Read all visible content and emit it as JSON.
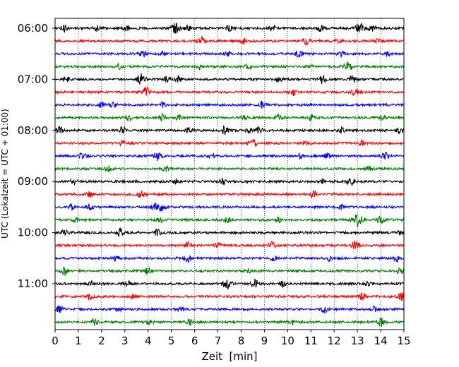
{
  "chart_data": {
    "type": "line",
    "title": "",
    "xlabel": "Zeit  [min]",
    "ylabel": "UTC (Lokalzeit = UTC + 01:00)",
    "xlim": [
      0,
      15
    ],
    "x_ticks": [
      0,
      1,
      2,
      3,
      4,
      5,
      6,
      7,
      8,
      9,
      10,
      11,
      12,
      13,
      14,
      15
    ],
    "x_tick_labels": [
      "0",
      "1",
      "2",
      "3",
      "4",
      "5",
      "6",
      "7",
      "8",
      "9",
      "10",
      "11",
      "12",
      "13",
      "14",
      "15"
    ],
    "y_tick_labels": [
      "06:00",
      "07:00",
      "08:00",
      "09:00",
      "10:00",
      "11:00"
    ],
    "y_tick_rows": [
      0,
      4,
      8,
      12,
      16,
      20
    ],
    "grid_x": true,
    "grid_style": "dotted",
    "trace_minutes": 15,
    "trace_colors": [
      "#000000",
      "#ff0000",
      "#0000ff",
      "#008000"
    ],
    "series": [
      {
        "start": "06:00",
        "events": [
          [
            0.4,
            0.5
          ],
          [
            1.8,
            0.4
          ],
          [
            3.1,
            0.5
          ],
          [
            5.2,
            0.8
          ],
          [
            5.7,
            0.4
          ],
          [
            7.5,
            0.4
          ],
          [
            9.3,
            0.5
          ],
          [
            11.4,
            0.5
          ],
          [
            13.1,
            0.8
          ],
          [
            13.6,
            0.5
          ]
        ]
      },
      {
        "start": "06:15",
        "events": [
          [
            6.3,
            0.6
          ],
          [
            8.1,
            0.4
          ],
          [
            10.8,
            0.5
          ],
          [
            12.2,
            0.4
          ],
          [
            13.9,
            0.4
          ]
        ]
      },
      {
        "start": "06:30",
        "events": [
          [
            3.8,
            0.5
          ],
          [
            4.6,
            0.4
          ],
          [
            7.4,
            0.4
          ],
          [
            10.5,
            0.5
          ],
          [
            12.3,
            0.4
          ],
          [
            14.3,
            0.4
          ]
        ]
      },
      {
        "start": "06:45",
        "events": [
          [
            2.7,
            0.4
          ],
          [
            6.2,
            0.4
          ],
          [
            8.3,
            0.4
          ],
          [
            10.9,
            0.4
          ],
          [
            12.6,
            0.7
          ]
        ]
      },
      {
        "start": "07:00",
        "events": [
          [
            0.5,
            0.4
          ],
          [
            3.7,
            0.8
          ],
          [
            4.8,
            0.4
          ],
          [
            5.3,
            0.4
          ],
          [
            9.6,
            0.4
          ],
          [
            11.5,
            0.7
          ],
          [
            12.8,
            0.5
          ]
        ]
      },
      {
        "start": "07:15",
        "events": [
          [
            3.9,
            0.7
          ],
          [
            10.2,
            0.5
          ],
          [
            12.9,
            0.5
          ]
        ]
      },
      {
        "start": "07:30",
        "events": [
          [
            2.0,
            0.4
          ],
          [
            2.5,
            0.4
          ],
          [
            4.6,
            0.4
          ],
          [
            8.9,
            0.5
          ]
        ]
      },
      {
        "start": "07:45",
        "events": [
          [
            3.2,
            0.5
          ],
          [
            4.6,
            0.5
          ],
          [
            5.3,
            0.4
          ],
          [
            8.1,
            0.4
          ],
          [
            9.6,
            0.4
          ],
          [
            11.0,
            0.4
          ],
          [
            14.1,
            0.4
          ]
        ]
      },
      {
        "start": "08:00",
        "events": [
          [
            0.2,
            0.5
          ],
          [
            2.9,
            0.5
          ],
          [
            5.8,
            0.5
          ],
          [
            7.3,
            0.7
          ],
          [
            8.3,
            0.4
          ],
          [
            8.8,
            0.6
          ],
          [
            12.3,
            0.4
          ],
          [
            14.8,
            0.5
          ]
        ]
      },
      {
        "start": "08:15",
        "events": [
          [
            2.9,
            0.4
          ],
          [
            8.5,
            0.7
          ],
          [
            10.8,
            0.5
          ],
          [
            13.2,
            0.4
          ]
        ]
      },
      {
        "start": "08:30",
        "events": [
          [
            1.2,
            0.5
          ],
          [
            4.4,
            0.6
          ],
          [
            6.7,
            0.4
          ],
          [
            10.5,
            0.4
          ],
          [
            11.7,
            0.4
          ],
          [
            14.2,
            0.5
          ]
        ]
      },
      {
        "start": "08:45",
        "events": [
          [
            2.3,
            0.4
          ],
          [
            4.8,
            0.5
          ],
          [
            13.5,
            0.5
          ]
        ]
      },
      {
        "start": "09:00",
        "events": [
          [
            0.8,
            0.4
          ],
          [
            5.2,
            0.4
          ],
          [
            7.2,
            0.4
          ],
          [
            11.5,
            0.4
          ],
          [
            12.7,
            0.6
          ]
        ]
      },
      {
        "start": "09:15",
        "events": [
          [
            1.5,
            0.4
          ],
          [
            3.7,
            0.5
          ],
          [
            11.1,
            0.4
          ]
        ]
      },
      {
        "start": "09:30",
        "events": [
          [
            0.7,
            0.4
          ],
          [
            1.5,
            0.4
          ],
          [
            4.3,
            0.6
          ],
          [
            4.6,
            0.5
          ],
          [
            12.3,
            0.4
          ]
        ]
      },
      {
        "start": "09:45",
        "events": [
          [
            0.9,
            0.4
          ],
          [
            4.5,
            0.4
          ],
          [
            7.4,
            0.4
          ],
          [
            9.6,
            0.4
          ],
          [
            13.0,
            1.0
          ],
          [
            14.0,
            0.5
          ]
        ]
      },
      {
        "start": "10:00",
        "events": [
          [
            0.4,
            0.4
          ],
          [
            2.8,
            0.5
          ],
          [
            4.4,
            0.5
          ],
          [
            14.9,
            0.4
          ]
        ]
      },
      {
        "start": "10:15",
        "events": [
          [
            5.7,
            0.5
          ],
          [
            7.0,
            0.4
          ],
          [
            9.3,
            0.5
          ],
          [
            12.9,
            0.6
          ]
        ]
      },
      {
        "start": "10:30",
        "events": [
          [
            2.6,
            0.4
          ],
          [
            5.7,
            0.6
          ],
          [
            9.4,
            0.4
          ],
          [
            11.8,
            0.4
          ],
          [
            14.7,
            0.4
          ]
        ]
      },
      {
        "start": "10:45",
        "events": [
          [
            0.4,
            0.6
          ],
          [
            4.0,
            0.6
          ],
          [
            8.3,
            0.4
          ],
          [
            14.8,
            0.5
          ]
        ]
      },
      {
        "start": "11:00",
        "events": [
          [
            1.5,
            0.4
          ],
          [
            3.1,
            0.4
          ],
          [
            7.4,
            0.8
          ],
          [
            8.6,
            0.6
          ],
          [
            9.8,
            0.4
          ],
          [
            13.4,
            0.4
          ]
        ]
      },
      {
        "start": "11:15",
        "events": [
          [
            1.5,
            0.6
          ],
          [
            3.4,
            0.4
          ],
          [
            13.2,
            0.5
          ],
          [
            14.9,
            0.7
          ]
        ]
      },
      {
        "start": "11:30",
        "events": [
          [
            0.2,
            0.5
          ],
          [
            2.7,
            0.4
          ],
          [
            5.4,
            0.4
          ],
          [
            11.6,
            0.5
          ],
          [
            13.7,
            0.4
          ]
        ]
      },
      {
        "start": "11:45",
        "events": [
          [
            1.7,
            0.6
          ],
          [
            4.1,
            0.4
          ],
          [
            5.8,
            0.4
          ],
          [
            10.2,
            0.4
          ],
          [
            14.0,
            0.7
          ]
        ]
      }
    ]
  }
}
